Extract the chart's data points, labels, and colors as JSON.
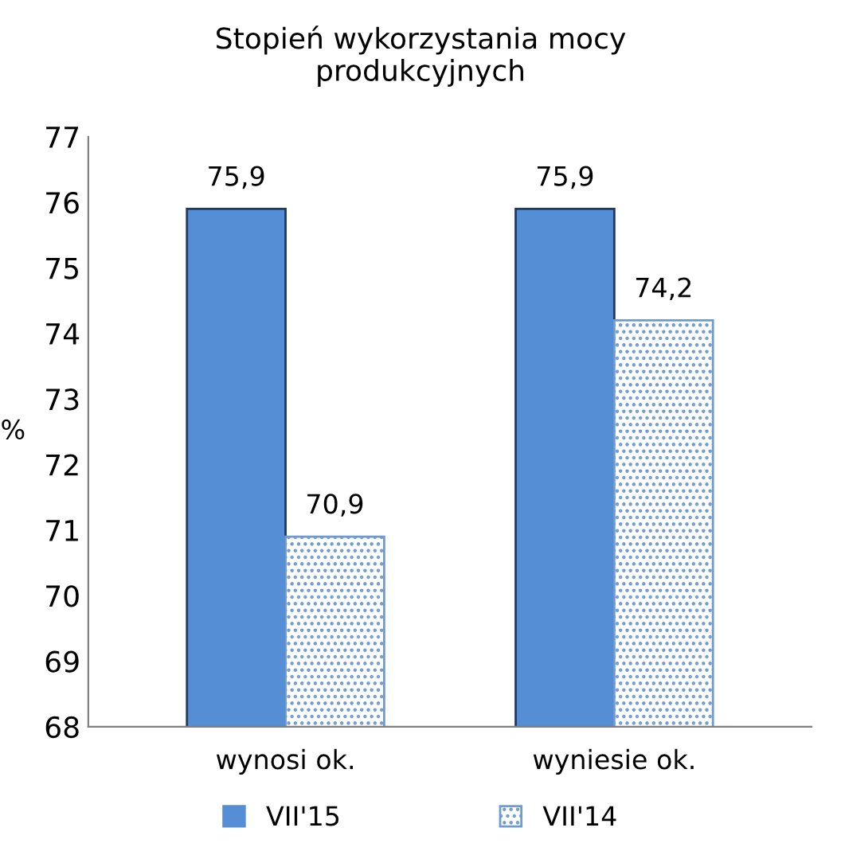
{
  "chart_data": {
    "type": "bar",
    "title": "Stopień wykorzystania mocy\nprodukcyjnych",
    "ylabel": "%",
    "categories": [
      "wynosi ok.",
      "wyniesie ok."
    ],
    "series": [
      {
        "name": "VII'15",
        "color": "#558ed5",
        "values": [
          75.9,
          75.9
        ],
        "value_labels": [
          "75,9",
          "75,9"
        ]
      },
      {
        "name": "VII'14",
        "color": "#6f9bd1",
        "values": [
          70.9,
          74.2
        ],
        "value_labels": [
          "70,9",
          "74,2"
        ]
      }
    ],
    "ylim": [
      68,
      77
    ],
    "yticks": [
      68,
      69,
      70,
      71,
      72,
      73,
      74,
      75,
      76,
      77
    ],
    "grid": false,
    "legend": "bottom"
  }
}
